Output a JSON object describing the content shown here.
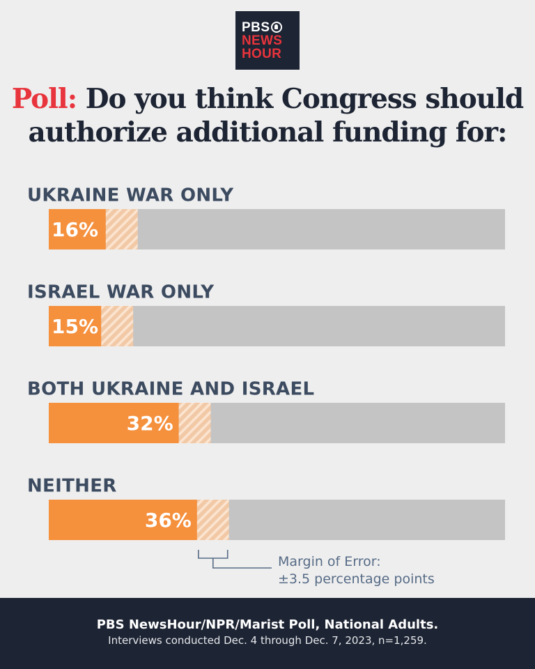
{
  "logo": {
    "line1": "PBS",
    "line2": "NEWS",
    "line3": "HOUR"
  },
  "header": {
    "poll_label": "Poll:",
    "title": "Do you think Congress should authorize additional funding for:"
  },
  "chart_data": {
    "type": "bar",
    "orientation": "horizontal",
    "categories": [
      "UKRAINE WAR ONLY",
      "ISRAEL WAR ONLY",
      "BOTH UKRAINE AND ISRAEL",
      "NEITHER"
    ],
    "values": [
      16,
      15,
      32,
      36
    ],
    "value_labels": [
      "16%",
      "15%",
      "32%",
      "36%"
    ],
    "unit": "%",
    "xlim": [
      0,
      100
    ],
    "margin_of_error": 3.5,
    "margin_of_error_label": [
      "Margin of Error:",
      "±3.5 percentage points"
    ],
    "colors": {
      "bar": "#f5903d",
      "track": "#c4c4c4",
      "hatch": "#f2c9a6"
    },
    "grid": false
  },
  "footer": {
    "source": "PBS NewsHour/NPR/Marist Poll, National Adults.",
    "note": "Interviews conducted Dec. 4 through Dec. 7, 2023, n=1,259."
  }
}
